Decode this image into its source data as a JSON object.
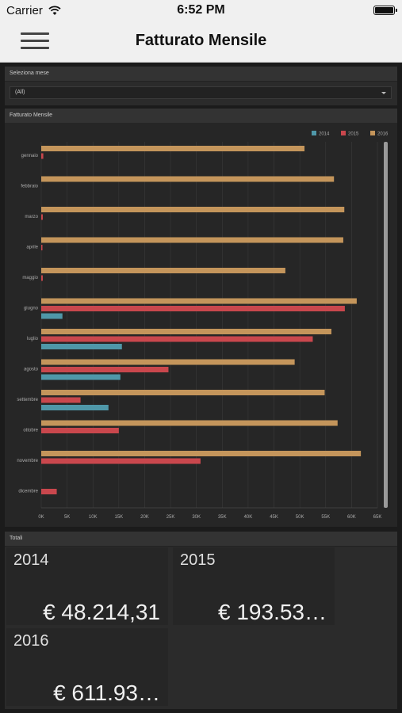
{
  "status": {
    "carrier": "Carrier",
    "time": "6:52 PM"
  },
  "nav": {
    "title": "Fatturato Mensile"
  },
  "filter": {
    "header": "Seleziona mese",
    "selected": "(All)"
  },
  "chart_panel": {
    "header": "Fatturato Mensile"
  },
  "chart_data": {
    "type": "bar",
    "orientation": "horizontal",
    "categories": [
      "gennaio",
      "febbraio",
      "marzo",
      "aprile",
      "maggio",
      "giugno",
      "luglio",
      "agosto",
      "settembre",
      "ottobre",
      "novembre",
      "dicembre"
    ],
    "series": [
      {
        "name": "2014",
        "color": "#4f97a8",
        "values": [
          0,
          0,
          0,
          0,
          0,
          4100,
          15600,
          15300,
          13000,
          0,
          0,
          0
        ]
      },
      {
        "name": "2015",
        "color": "#c9474d",
        "values": [
          400,
          0,
          300,
          200,
          300,
          58700,
          52500,
          24600,
          7600,
          15000,
          30800,
          3000
        ]
      },
      {
        "name": "2016",
        "color": "#c4955b",
        "values": [
          50900,
          56600,
          58600,
          58400,
          47200,
          61000,
          56100,
          49000,
          54800,
          57300,
          61800,
          0
        ]
      }
    ],
    "x_ticks": [
      "0K",
      "5K",
      "10K",
      "15K",
      "20K",
      "25K",
      "30K",
      "35K",
      "40K",
      "45K",
      "50K",
      "55K",
      "60K",
      "65K"
    ],
    "xlim": [
      0,
      65000
    ],
    "legend_position": "top-right",
    "grid": true
  },
  "totals": {
    "header": "Totali",
    "items": [
      {
        "year": "2014",
        "value": "€ 48.214,31"
      },
      {
        "year": "2015",
        "value": "€ 193.53…"
      },
      {
        "year": "2016",
        "value": "€ 611.93…"
      }
    ]
  }
}
